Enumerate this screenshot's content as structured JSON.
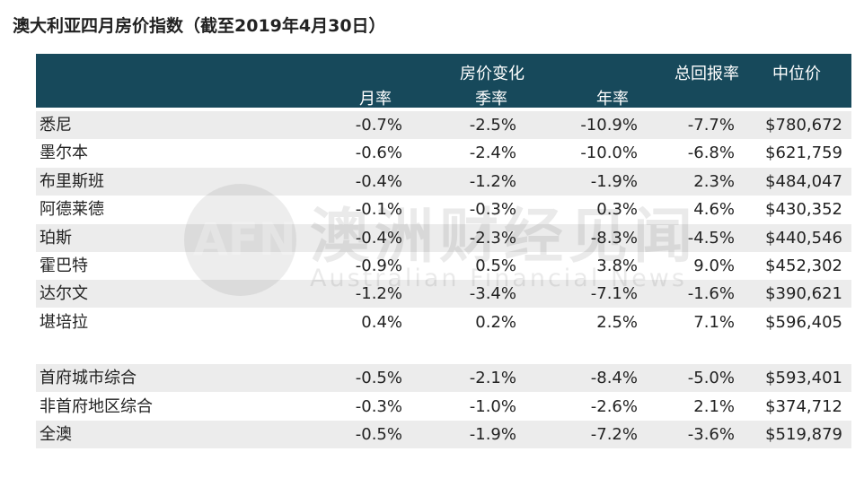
{
  "title": "澳大利亚四月房价指数（截至2019年4月30日）",
  "header": {
    "group": "房价变化",
    "columns": [
      "月率",
      "季率",
      "年率",
      "总回报率",
      "中位价"
    ]
  },
  "groups": [
    {
      "rows": [
        [
          "悉尼",
          "-0.7%",
          "-2.5%",
          "-10.9%",
          "-7.7%",
          "$780,672"
        ],
        [
          "墨尔本",
          "-0.6%",
          "-2.4%",
          "-10.0%",
          "-6.8%",
          "$621,759"
        ],
        [
          "布里斯班",
          "-0.4%",
          "-1.2%",
          "-1.9%",
          "2.3%",
          "$484,047"
        ],
        [
          "阿德莱德",
          "-0.1%",
          "-0.3%",
          "0.3%",
          "4.6%",
          "$430,352"
        ],
        [
          "珀斯",
          "-0.4%",
          "-2.3%",
          "-8.3%",
          "-4.5%",
          "$440,546"
        ],
        [
          "霍巴特",
          "-0.9%",
          "0.5%",
          "3.8%",
          "9.0%",
          "$452,302"
        ],
        [
          "达尔文",
          "-1.2%",
          "-3.4%",
          "-7.1%",
          "-1.6%",
          "$390,621"
        ],
        [
          "堪培拉",
          "0.4%",
          "0.2%",
          "2.5%",
          "7.1%",
          "$596,405"
        ]
      ]
    },
    {
      "rows": [
        [
          "首府城市综合",
          "-0.5%",
          "-2.1%",
          "-8.4%",
          "-5.0%",
          "$593,401"
        ],
        [
          "非首府地区综合",
          "-0.3%",
          "-1.0%",
          "-2.6%",
          "2.1%",
          "$374,712"
        ],
        [
          "全澳",
          "-0.5%",
          "-1.9%",
          "-7.2%",
          "-3.6%",
          "$519,879"
        ]
      ]
    }
  ],
  "watermark": {
    "logo": "AFN",
    "name": "澳洲财经见闻",
    "english": "Australian Financial News"
  }
}
